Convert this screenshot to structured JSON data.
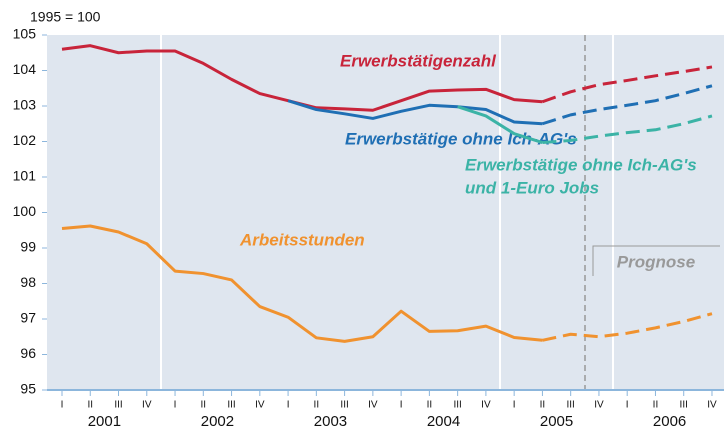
{
  "chart_data": {
    "type": "line",
    "y_label": "1995 = 100",
    "categories": [
      "I",
      "II",
      "III",
      "IV",
      "I",
      "II",
      "III",
      "IV",
      "I",
      "II",
      "III",
      "IV",
      "I",
      "II",
      "III",
      "IV",
      "I",
      "II",
      "III",
      "IV",
      "I",
      "II",
      "III",
      "IV"
    ],
    "years": [
      "2001",
      "2002",
      "2003",
      "2004",
      "2005",
      "2006"
    ],
    "ylim": [
      95,
      105
    ],
    "yticks": [
      95,
      96,
      97,
      98,
      99,
      100,
      101,
      102,
      103,
      104,
      105
    ],
    "forecast_label": "Prognose",
    "series": [
      {
        "name": "Erwerbstätigenzahl",
        "color": "#c8243a",
        "dash_from": 17,
        "values": [
          104.6,
          104.7,
          104.5,
          104.55,
          104.55,
          104.2,
          103.75,
          103.35,
          103.15,
          102.95,
          102.92,
          102.88,
          103.15,
          103.42,
          103.45,
          103.47,
          103.18,
          103.12,
          103.4,
          103.6,
          103.72,
          103.85,
          103.97,
          104.1
        ]
      },
      {
        "name": "Erwerbstätige ohne Ich-AG's",
        "color": "#1f6fb4",
        "dash_from": 17,
        "values": [
          null,
          null,
          null,
          null,
          null,
          null,
          null,
          null,
          103.15,
          102.9,
          102.78,
          102.65,
          102.85,
          103.02,
          102.98,
          102.9,
          102.55,
          102.5,
          102.75,
          102.9,
          103.02,
          103.15,
          103.35,
          103.57
        ]
      },
      {
        "name": [
          "Erwerbstätige ohne Ich-AG's",
          "und 1-Euro Jobs"
        ],
        "color": "#3bb3a6",
        "dash_from": 17,
        "values": [
          null,
          null,
          null,
          null,
          null,
          null,
          null,
          null,
          null,
          null,
          null,
          null,
          null,
          null,
          102.98,
          102.72,
          102.22,
          101.97,
          102.03,
          102.15,
          102.25,
          102.33,
          102.5,
          102.72
        ]
      },
      {
        "name": "Arbeitsstunden",
        "color": "#f0922f",
        "dash_from": 17,
        "values": [
          99.55,
          99.62,
          99.45,
          99.12,
          98.35,
          98.28,
          98.1,
          97.35,
          97.05,
          96.47,
          96.37,
          96.5,
          97.22,
          96.65,
          96.67,
          96.8,
          96.48,
          96.4,
          96.57,
          96.5,
          96.6,
          96.75,
          96.93,
          97.15
        ]
      }
    ]
  }
}
